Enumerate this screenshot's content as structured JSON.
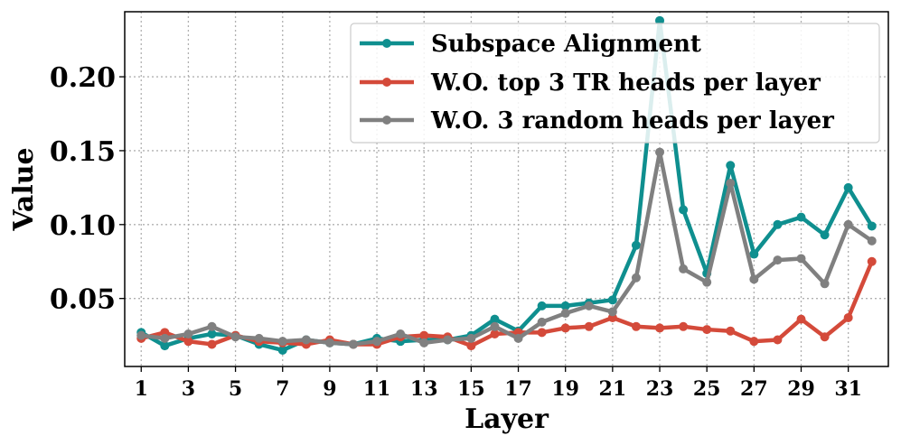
{
  "chart_data": {
    "type": "line",
    "xlabel": "Layer",
    "ylabel": "Value",
    "xlim": [
      0.3,
      32.7
    ],
    "ylim": [
      0.004,
      0.244
    ],
    "xticks": [
      1,
      3,
      5,
      7,
      9,
      11,
      13,
      15,
      17,
      19,
      21,
      23,
      25,
      27,
      29,
      31
    ],
    "xtick_labels": [
      "1",
      "3",
      "5",
      "7",
      "9",
      "11",
      "13",
      "15",
      "17",
      "19",
      "21",
      "23",
      "25",
      "27",
      "29",
      "31"
    ],
    "yticks": [
      0.05,
      0.1,
      0.15,
      0.2
    ],
    "ytick_labels": [
      "0.05",
      "0.10",
      "0.15",
      "0.20"
    ],
    "grid": true,
    "legend_position": "top-right",
    "x": [
      1,
      2,
      3,
      4,
      5,
      6,
      7,
      8,
      9,
      10,
      11,
      12,
      13,
      14,
      15,
      16,
      17,
      18,
      19,
      20,
      21,
      22,
      23,
      24,
      25,
      26,
      27,
      28,
      29,
      30,
      31,
      32
    ],
    "series": [
      {
        "name": "Subspace Alignment",
        "color": "#0f8f8f",
        "values": [
          0.027,
          0.018,
          0.023,
          0.026,
          0.025,
          0.019,
          0.015,
          0.022,
          0.02,
          0.019,
          0.023,
          0.021,
          0.022,
          0.022,
          0.025,
          0.036,
          0.028,
          0.045,
          0.045,
          0.047,
          0.049,
          0.086,
          0.238,
          0.11,
          0.067,
          0.14,
          0.08,
          0.1,
          0.105,
          0.093,
          0.125,
          0.099
        ]
      },
      {
        "name": "W.O. top 3 TR heads per layer",
        "color": "#d44a3a",
        "values": [
          0.023,
          0.027,
          0.021,
          0.019,
          0.025,
          0.021,
          0.02,
          0.019,
          0.022,
          0.019,
          0.019,
          0.024,
          0.025,
          0.024,
          0.018,
          0.026,
          0.027,
          0.027,
          0.03,
          0.031,
          0.037,
          0.031,
          0.03,
          0.031,
          0.029,
          0.028,
          0.021,
          0.022,
          0.036,
          0.024,
          0.037,
          0.075
        ]
      },
      {
        "name": "W.O. 3 random heads per layer",
        "color": "#808080",
        "values": [
          0.025,
          0.023,
          0.026,
          0.031,
          0.024,
          0.023,
          0.021,
          0.022,
          0.02,
          0.019,
          0.021,
          0.026,
          0.02,
          0.022,
          0.023,
          0.031,
          0.023,
          0.034,
          0.04,
          0.045,
          0.041,
          0.064,
          0.149,
          0.07,
          0.061,
          0.128,
          0.063,
          0.076,
          0.077,
          0.06,
          0.1,
          0.089
        ]
      }
    ]
  }
}
